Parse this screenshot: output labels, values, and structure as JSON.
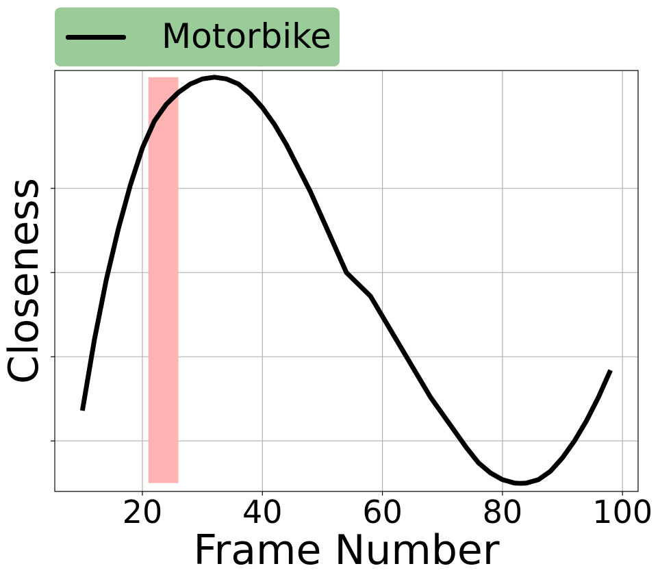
{
  "chart_data": {
    "type": "line",
    "xlabel": "Frame Number",
    "ylabel": "Closeness",
    "xlim": [
      5.4,
      102.6
    ],
    "ylim": [
      -0.15,
      1.1
    ],
    "xticks": [
      20,
      40,
      60,
      80,
      100
    ],
    "yticks": [
      0.0,
      0.25,
      0.5,
      0.75
    ],
    "ytick_labels_visible": false,
    "grid": true,
    "legend_placement": "top-left, above plot",
    "series": [
      {
        "name": "Motorbike",
        "color": "#000000",
        "points": [
          [
            10,
            0.09
          ],
          [
            12,
            0.3
          ],
          [
            14,
            0.48
          ],
          [
            16,
            0.63
          ],
          [
            18,
            0.76
          ],
          [
            20,
            0.87
          ],
          [
            22,
            0.95
          ],
          [
            24,
            1.0
          ],
          [
            26,
            1.035
          ],
          [
            28,
            1.06
          ],
          [
            30,
            1.075
          ],
          [
            32,
            1.08
          ],
          [
            34,
            1.075
          ],
          [
            36,
            1.06
          ],
          [
            38,
            1.03
          ],
          [
            40,
            0.99
          ],
          [
            42,
            0.94
          ],
          [
            44,
            0.88
          ],
          [
            46,
            0.81
          ],
          [
            48,
            0.74
          ],
          [
            50,
            0.66
          ],
          [
            52,
            0.58
          ],
          [
            54,
            0.5
          ],
          [
            58,
            0.43
          ],
          [
            60,
            0.37
          ],
          [
            62,
            0.31
          ],
          [
            64,
            0.25
          ],
          [
            66,
            0.19
          ],
          [
            68,
            0.13
          ],
          [
            70,
            0.08
          ],
          [
            72,
            0.03
          ],
          [
            74,
            -0.02
          ],
          [
            76,
            -0.065
          ],
          [
            78,
            -0.095
          ],
          [
            80,
            -0.115
          ],
          [
            82,
            -0.125
          ],
          [
            83,
            -0.126
          ],
          [
            84,
            -0.125
          ],
          [
            86,
            -0.115
          ],
          [
            88,
            -0.09
          ],
          [
            90,
            -0.05
          ],
          [
            92,
            0.0
          ],
          [
            94,
            0.06
          ],
          [
            96,
            0.13
          ],
          [
            98,
            0.21
          ]
        ]
      }
    ],
    "highlight_span": {
      "x_start": 21,
      "x_end": 26,
      "y_start": -0.125,
      "y_end": 1.08,
      "color": "#ffb2b2"
    },
    "legend_bg": "#99cc99"
  }
}
